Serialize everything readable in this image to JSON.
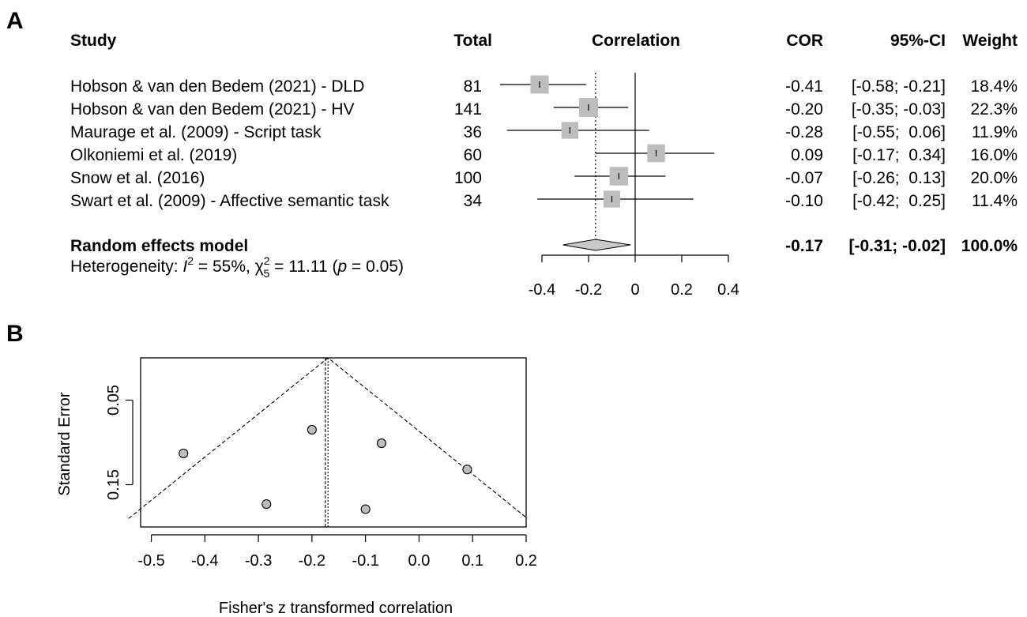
{
  "panels": {
    "a_label": "A",
    "b_label": "B"
  },
  "chart_data": [
    {
      "type": "forest",
      "headers": {
        "study": "Study",
        "total": "Total",
        "effect": "Correlation",
        "cor": "COR",
        "ci": "95%-CI",
        "weight": "Weight"
      },
      "studies": [
        {
          "name": "Hobson & van den Bedem (2021) - DLD",
          "total": "81",
          "cor": -0.41,
          "lo": -0.58,
          "hi": -0.21,
          "weight": 18.4,
          "cor_text": "-0.41",
          "ci_text": "[-0.58; -0.21]",
          "weight_text": "18.4%"
        },
        {
          "name": "Hobson & van den Bedem (2021) - HV",
          "total": "141",
          "cor": -0.2,
          "lo": -0.35,
          "hi": -0.03,
          "weight": 22.3,
          "cor_text": "-0.20",
          "ci_text": "[-0.35; -0.03]",
          "weight_text": "22.3%"
        },
        {
          "name": "Maurage et al. (2009) - Script task",
          "total": "36",
          "cor": -0.28,
          "lo": -0.55,
          "hi": 0.06,
          "weight": 11.9,
          "cor_text": "-0.28",
          "ci_text": "[-0.55;  0.06]",
          "weight_text": "11.9%"
        },
        {
          "name": "Olkoniemi et al. (2019)",
          "total": "60",
          "cor": 0.09,
          "lo": -0.17,
          "hi": 0.34,
          "weight": 16.0,
          "cor_text": "0.09",
          "ci_text": "[-0.17;  0.34]",
          "weight_text": "16.0%"
        },
        {
          "name": "Snow et al. (2016)",
          "total": "100",
          "cor": -0.07,
          "lo": -0.26,
          "hi": 0.13,
          "weight": 20.0,
          "cor_text": "-0.07",
          "ci_text": "[-0.26;  0.13]",
          "weight_text": "20.0%"
        },
        {
          "name": "Swart et al. (2009) - Affective semantic task",
          "total": "34",
          "cor": -0.1,
          "lo": -0.42,
          "hi": 0.25,
          "weight": 11.4,
          "cor_text": "-0.10",
          "ci_text": "[-0.42;  0.25]",
          "weight_text": "11.4%"
        }
      ],
      "summary": {
        "name": "Random effects model",
        "cor": -0.17,
        "lo": -0.31,
        "hi": -0.02,
        "cor_text": "-0.17",
        "ci_text": "[-0.31; -0.02]",
        "weight_text": "100.0%"
      },
      "heterogeneity": {
        "prefix": "Heterogeneity: ",
        "i_symbol": "I",
        "i_sup": "2",
        "i_value": " = 55%, ",
        "chi_symbol": "χ",
        "chi_sup": "2",
        "chi_sub": "5",
        "chi_value": " = 11.11 (",
        "p_symbol": "p",
        "p_value": " = 0.05)"
      },
      "axis": {
        "ticks": [
          -0.4,
          -0.2,
          0,
          0.2,
          0.4
        ],
        "tick_labels": [
          "-0.4",
          "-0.2",
          "0",
          "0.2",
          "0.4"
        ],
        "xlim": [
          -0.4,
          0.4
        ],
        "null_line": 0,
        "summary_line": -0.17
      }
    },
    {
      "type": "funnel",
      "xlabel": "Fisher's z transformed correlation",
      "ylabel": "Standard Error",
      "xlim": [
        -0.52,
        0.2
      ],
      "ylim": [
        0.2,
        0
      ],
      "x_ticks": [
        -0.5,
        -0.4,
        -0.3,
        -0.2,
        -0.1,
        0.0,
        0.1,
        0.2
      ],
      "x_tick_labels": [
        "-0.5",
        "-0.4",
        "-0.3",
        "-0.2",
        "-0.1",
        "0.0",
        "0.1",
        "0.2"
      ],
      "y_ticks": [
        0.05,
        0.15
      ],
      "y_tick_labels": [
        "0.05",
        "0.15"
      ],
      "center_fixed": -0.17,
      "center_random": -0.175,
      "points": [
        {
          "x": -0.44,
          "y": 0.113
        },
        {
          "x": -0.2,
          "y": 0.085
        },
        {
          "x": -0.07,
          "y": 0.101
        },
        {
          "x": 0.09,
          "y": 0.132
        },
        {
          "x": -0.285,
          "y": 0.173
        },
        {
          "x": -0.1,
          "y": 0.179
        }
      ],
      "colors": {
        "point_fill": "#bdbdbd",
        "point_stroke": "#000000"
      }
    }
  ],
  "colors": {
    "square": "#bdbdbd",
    "diamond": "#c8c8c8"
  }
}
